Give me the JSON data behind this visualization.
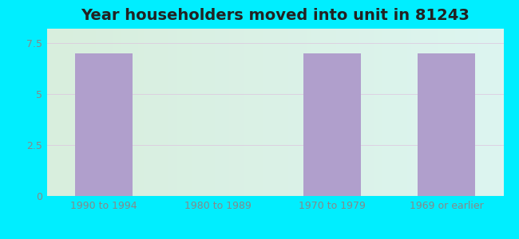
{
  "categories": [
    "1990 to 1994",
    "1980 to 1989",
    "1970 to 1979",
    "1969 or earlier"
  ],
  "values": [
    7.0,
    0,
    7.0,
    7.0
  ],
  "bar_color": "#b09fcc",
  "title": "Year householders moved into unit in 81243",
  "title_fontsize": 14,
  "ylim": [
    0,
    8.2
  ],
  "yticks": [
    0,
    2.5,
    5,
    7.5
  ],
  "background_color": "#00eeff",
  "plot_bg_left": "#d8eedd",
  "plot_bg_right": "#ddf5f0",
  "grid_color": "#ddbbdd",
  "bar_width": 0.5,
  "tick_label_color": "#888888",
  "tick_label_size": 9
}
